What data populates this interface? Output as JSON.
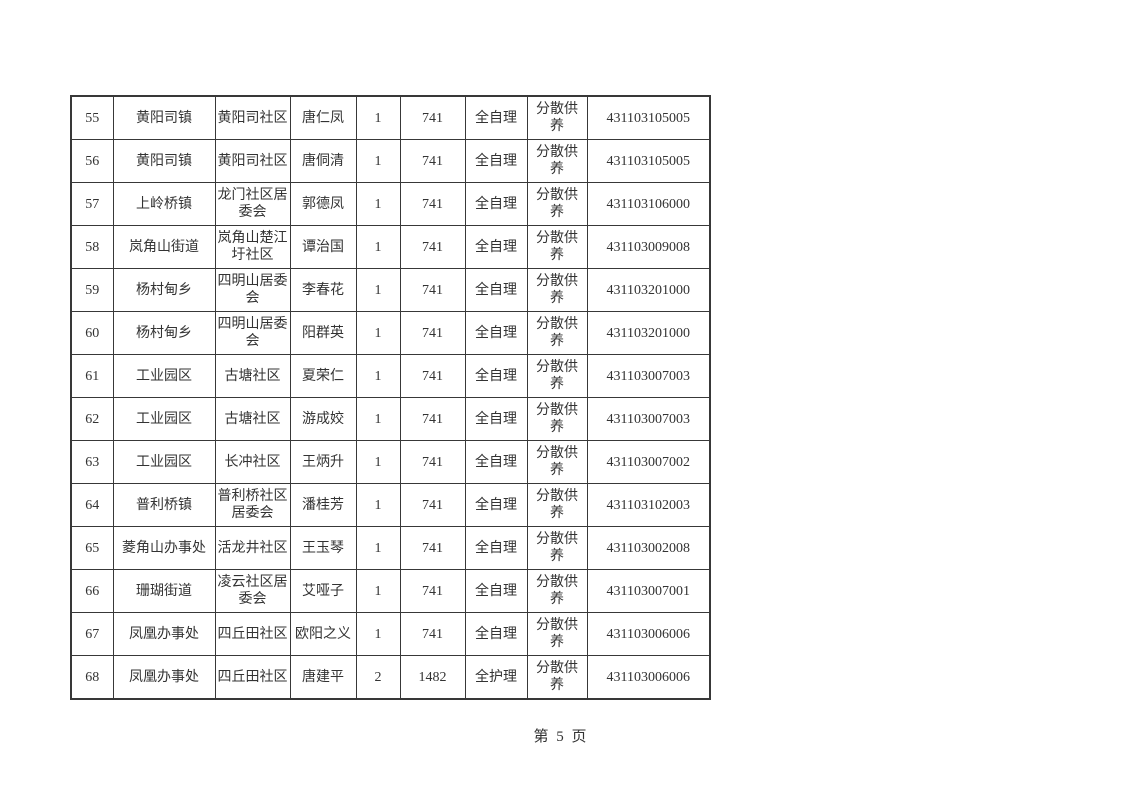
{
  "colors": {
    "background": "#ffffff",
    "text": "#333333",
    "table_border": "#383838"
  },
  "page": {
    "footer": "第 5 页"
  },
  "table": {
    "rows": [
      [
        "55",
        "黄阳司镇",
        "黄阳司社区",
        "唐仁凤",
        "1",
        "741",
        "全自理",
        "分散供养",
        "431103105005"
      ],
      [
        "56",
        "黄阳司镇",
        "黄阳司社区",
        "唐侗清",
        "1",
        "741",
        "全自理",
        "分散供养",
        "431103105005"
      ],
      [
        "57",
        "上岭桥镇",
        "龙门社区居委会",
        "郭德凤",
        "1",
        "741",
        "全自理",
        "分散供养",
        "431103106000"
      ],
      [
        "58",
        "岚角山街道",
        "岚角山楚江圩社区",
        "谭治国",
        "1",
        "741",
        "全自理",
        "分散供养",
        "431103009008"
      ],
      [
        "59",
        "杨村甸乡",
        "四明山居委会",
        "李春花",
        "1",
        "741",
        "全自理",
        "分散供养",
        "431103201000"
      ],
      [
        "60",
        "杨村甸乡",
        "四明山居委会",
        "阳群英",
        "1",
        "741",
        "全自理",
        "分散供养",
        "431103201000"
      ],
      [
        "61",
        "工业园区",
        "古塘社区",
        "夏荣仁",
        "1",
        "741",
        "全自理",
        "分散供养",
        "431103007003"
      ],
      [
        "62",
        "工业园区",
        "古塘社区",
        "游成姣",
        "1",
        "741",
        "全自理",
        "分散供养",
        "431103007003"
      ],
      [
        "63",
        "工业园区",
        "长冲社区",
        "王炳升",
        "1",
        "741",
        "全自理",
        "分散供养",
        "431103007002"
      ],
      [
        "64",
        "普利桥镇",
        "普利桥社区居委会",
        "潘桂芳",
        "1",
        "741",
        "全自理",
        "分散供养",
        "431103102003"
      ],
      [
        "65",
        "菱角山办事处",
        "活龙井社区",
        "王玉琴",
        "1",
        "741",
        "全自理",
        "分散供养",
        "431103002008"
      ],
      [
        "66",
        "珊瑚街道",
        "凌云社区居委会",
        "艾哑子",
        "1",
        "741",
        "全自理",
        "分散供养",
        "431103007001"
      ],
      [
        "67",
        "凤凰办事处",
        "四丘田社区",
        "欧阳之义",
        "1",
        "741",
        "全自理",
        "分散供养",
        "431103006006"
      ],
      [
        "68",
        "凤凰办事处",
        "四丘田社区",
        "唐建平",
        "2",
        "1482",
        "全护理",
        "分散供养",
        "431103006006"
      ]
    ]
  }
}
